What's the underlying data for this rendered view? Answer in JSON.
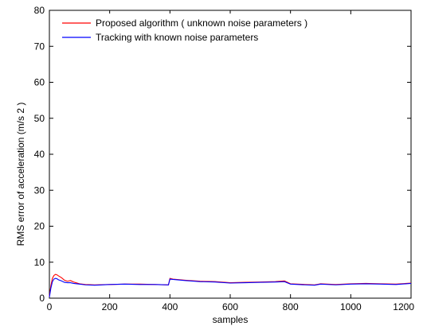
{
  "chart_data": {
    "type": "line",
    "xlabel": "samples",
    "ylabel": "RMS error of acceleration (m/s 2 )",
    "xlim": [
      0,
      1200
    ],
    "ylim": [
      0,
      80
    ],
    "xticks": [
      0,
      200,
      400,
      600,
      800,
      1000,
      1200
    ],
    "yticks": [
      0,
      10,
      20,
      30,
      40,
      50,
      60,
      70,
      80
    ],
    "grid": false,
    "legend_position": "top-left",
    "series": [
      {
        "name": "Proposed algorithm ( unknown noise parameters )",
        "color": "#ff0000",
        "x": [
          0,
          5,
          10,
          15,
          20,
          25,
          30,
          40,
          50,
          60,
          70,
          80,
          100,
          120,
          150,
          200,
          250,
          300,
          350,
          395,
          400,
          410,
          450,
          500,
          550,
          600,
          650,
          700,
          750,
          780,
          800,
          850,
          880,
          900,
          950,
          1000,
          1050,
          1100,
          1150,
          1200
        ],
        "y": [
          0.5,
          3.5,
          5.5,
          6.3,
          6.6,
          6.5,
          6.2,
          5.7,
          5.0,
          4.7,
          4.9,
          4.5,
          4.0,
          3.8,
          3.7,
          3.8,
          3.9,
          3.9,
          3.8,
          3.7,
          5.5,
          5.3,
          5.0,
          4.7,
          4.6,
          4.3,
          4.4,
          4.5,
          4.6,
          4.8,
          4.0,
          3.8,
          3.7,
          4.0,
          3.8,
          4.0,
          4.1,
          4.0,
          3.9,
          4.2
        ]
      },
      {
        "name": "Tracking with known noise parameters",
        "color": "#0000ff",
        "x": [
          0,
          5,
          10,
          15,
          20,
          25,
          30,
          40,
          50,
          60,
          70,
          80,
          100,
          120,
          150,
          200,
          250,
          300,
          350,
          395,
          400,
          410,
          450,
          500,
          550,
          600,
          650,
          700,
          750,
          780,
          800,
          850,
          880,
          900,
          950,
          1000,
          1050,
          1100,
          1150,
          1200
        ],
        "y": [
          0.3,
          2.8,
          4.6,
          5.3,
          5.5,
          5.4,
          5.1,
          4.8,
          4.4,
          4.3,
          4.3,
          4.1,
          3.9,
          3.7,
          3.6,
          3.8,
          3.9,
          3.8,
          3.8,
          3.7,
          5.3,
          5.2,
          4.9,
          4.6,
          4.5,
          4.2,
          4.3,
          4.4,
          4.5,
          4.6,
          3.9,
          3.7,
          3.6,
          3.9,
          3.7,
          3.9,
          4.0,
          3.9,
          3.8,
          4.1
        ]
      }
    ]
  }
}
